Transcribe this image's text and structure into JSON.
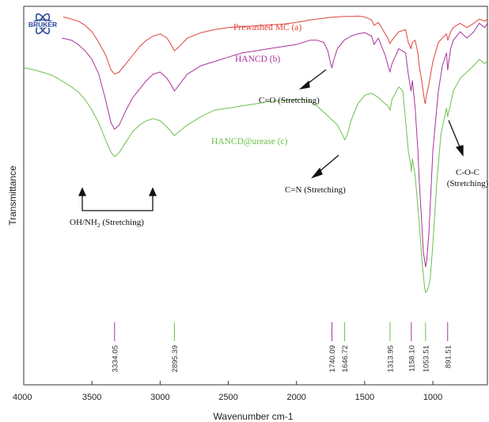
{
  "chart_data": {
    "type": "line",
    "title": "",
    "xlabel": "Wavenumber cm-1",
    "ylabel": "Transmittance",
    "xlim": [
      4000,
      600
    ],
    "x_reversed": true,
    "x_ticks": [
      4000,
      3500,
      3000,
      2500,
      2000,
      1500,
      1000
    ],
    "x_tick_labels": [
      "4000",
      "3500",
      "3000",
      "2500",
      "2000",
      "1500",
      "1000"
    ],
    "grid": false,
    "logo_text": "BRUKER",
    "colors": {
      "a": "#e0443c",
      "b": "#a8329a",
      "c": "#6cc04a",
      "frame": "#333333",
      "arrow": "#111111"
    },
    "series": [
      {
        "name": "Prewashed MC (a)",
        "color": "#e0443c",
        "x": [
          3710,
          3650,
          3600,
          3550,
          3500,
          3450,
          3400,
          3360,
          3334,
          3300,
          3250,
          3200,
          3150,
          3100,
          3050,
          3000,
          2950,
          2920,
          2895,
          2860,
          2800,
          2700,
          2600,
          2500,
          2400,
          2300,
          2200,
          2100,
          2000,
          1950,
          1900,
          1850,
          1800,
          1750,
          1700,
          1650,
          1600,
          1550,
          1500,
          1450,
          1430,
          1400,
          1375,
          1350,
          1330,
          1315,
          1300,
          1250,
          1200,
          1180,
          1160,
          1150,
          1130,
          1110,
          1100,
          1080,
          1060,
          1055,
          1050,
          1040,
          1030,
          1000,
          960,
          930,
          900,
          890,
          870,
          850,
          800,
          750,
          700,
          660,
          620,
          600
        ],
        "y": [
          93.5,
          93.0,
          92.5,
          91.5,
          90.0,
          87.5,
          84.5,
          81.0,
          80.0,
          80.5,
          82.5,
          84.5,
          86.5,
          88.0,
          89.0,
          89.5,
          88.5,
          87.0,
          85.5,
          86.5,
          88.5,
          89.8,
          90.5,
          91.0,
          91.2,
          91.4,
          91.6,
          91.8,
          92.2,
          92.5,
          92.8,
          93.0,
          93.2,
          93.4,
          93.5,
          93.6,
          93.6,
          93.7,
          93.5,
          92.8,
          91.5,
          92.2,
          91.0,
          89.5,
          88.5,
          87.2,
          88.0,
          90.0,
          90.5,
          87.5,
          86.0,
          87.5,
          88.0,
          85.0,
          82.0,
          78.0,
          73.5,
          73.0,
          74.5,
          76.0,
          77.5,
          83.0,
          87.5,
          88.5,
          89.5,
          88.0,
          90.0,
          91.0,
          92.0,
          91.0,
          92.0,
          93.0,
          92.5,
          93.0
        ]
      },
      {
        "name": "HANCD (b)",
        "color": "#a8329a",
        "x": [
          3720,
          3650,
          3600,
          3550,
          3500,
          3450,
          3400,
          3360,
          3334,
          3300,
          3250,
          3200,
          3150,
          3100,
          3050,
          3000,
          2950,
          2920,
          2895,
          2860,
          2800,
          2700,
          2600,
          2500,
          2400,
          2300,
          2200,
          2100,
          2000,
          1950,
          1900,
          1850,
          1800,
          1770,
          1750,
          1740,
          1730,
          1700,
          1650,
          1600,
          1550,
          1500,
          1450,
          1430,
          1400,
          1375,
          1350,
          1315,
          1300,
          1250,
          1200,
          1180,
          1160,
          1150,
          1130,
          1110,
          1100,
          1080,
          1070,
          1053,
          1045,
          1030,
          1000,
          960,
          930,
          900,
          891,
          870,
          850,
          800,
          750,
          700,
          660,
          620,
          600
        ],
        "y": [
          88.5,
          88.0,
          87.0,
          85.5,
          83.5,
          80.0,
          74.0,
          68.5,
          67.0,
          68.0,
          71.5,
          74.5,
          76.5,
          78.5,
          80.0,
          80.5,
          79.0,
          77.5,
          76.0,
          77.5,
          80.0,
          82.0,
          83.0,
          84.0,
          85.0,
          85.5,
          86.0,
          86.5,
          87.0,
          87.5,
          88.0,
          88.0,
          87.5,
          85.5,
          82.5,
          81.5,
          83.0,
          86.0,
          88.0,
          89.0,
          89.5,
          89.8,
          89.0,
          87.0,
          88.5,
          86.5,
          84.5,
          80.5,
          82.5,
          86.0,
          85.0,
          80.0,
          76.0,
          78.5,
          72.0,
          62.0,
          55.0,
          44.0,
          38.0,
          34.5,
          36.0,
          42.0,
          62.0,
          76.0,
          82.0,
          85.0,
          81.0,
          86.0,
          88.0,
          90.0,
          88.5,
          90.0,
          92.0,
          91.0,
          92.0
        ]
      },
      {
        "name": "HANCD@urease (c)",
        "color": "#6cc04a",
        "x": [
          4000,
          3950,
          3900,
          3850,
          3800,
          3750,
          3700,
          3650,
          3600,
          3550,
          3500,
          3450,
          3400,
          3360,
          3334,
          3300,
          3250,
          3200,
          3150,
          3100,
          3050,
          3000,
          2950,
          2920,
          2895,
          2860,
          2800,
          2700,
          2600,
          2500,
          2400,
          2300,
          2200,
          2100,
          2000,
          1950,
          1900,
          1850,
          1800,
          1750,
          1700,
          1660,
          1646,
          1630,
          1600,
          1550,
          1500,
          1450,
          1400,
          1350,
          1330,
          1314,
          1300,
          1250,
          1220,
          1200,
          1180,
          1160,
          1158,
          1150,
          1130,
          1100,
          1080,
          1060,
          1053,
          1040,
          1020,
          1000,
          970,
          940,
          900,
          891,
          870,
          850,
          800,
          750,
          700,
          660,
          620,
          600
        ],
        "y": [
          81.5,
          81.2,
          80.8,
          80.3,
          79.8,
          79.0,
          78.0,
          77.0,
          75.8,
          74.0,
          71.5,
          68.5,
          64.5,
          61.5,
          60.5,
          61.5,
          64.0,
          66.5,
          68.0,
          69.0,
          69.5,
          69.0,
          67.5,
          66.5,
          65.5,
          66.5,
          68.0,
          70.0,
          71.5,
          72.0,
          72.5,
          73.0,
          73.5,
          73.8,
          74.0,
          74.0,
          73.5,
          72.5,
          71.0,
          69.5,
          68.0,
          65.5,
          64.5,
          65.5,
          69.0,
          73.0,
          75.0,
          75.5,
          74.5,
          73.0,
          72.5,
          71.5,
          74.0,
          77.0,
          76.0,
          69.0,
          62.0,
          58.0,
          57.0,
          60.0,
          56.0,
          45.0,
          36.0,
          29.5,
          28.5,
          29.0,
          31.5,
          40.0,
          55.0,
          66.0,
          72.0,
          70.0,
          73.0,
          76.0,
          79.0,
          80.5,
          82.0,
          83.5,
          82.5,
          83.0
        ]
      }
    ],
    "peak_markers": [
      {
        "label": "3334.05",
        "x": 3334.05,
        "series": "b"
      },
      {
        "label": "2895.39",
        "x": 2895.39,
        "series": "c"
      },
      {
        "label": "1740.09",
        "x": 1740.09,
        "series": "b"
      },
      {
        "label": "1646.72",
        "x": 1646.72,
        "series": "c"
      },
      {
        "label": "1313.95",
        "x": 1313.95,
        "series": "c"
      },
      {
        "label": "1158.10",
        "x": 1158.1,
        "series": "b"
      },
      {
        "label": "1053.51",
        "x": 1053.51,
        "series": "c"
      },
      {
        "label": "891.51",
        "x": 891.51,
        "series": "b"
      }
    ],
    "annotations": [
      {
        "id": "co",
        "text": "C=O (Stretching)"
      },
      {
        "id": "cn",
        "text": "C=N (Stretching)"
      },
      {
        "id": "coc1",
        "text": "C-O-C"
      },
      {
        "id": "coc2",
        "text": "(Stretching)"
      },
      {
        "id": "oh",
        "text": "OH/NH",
        "sub": "2",
        "suffix": " (Stretching)"
      }
    ]
  }
}
